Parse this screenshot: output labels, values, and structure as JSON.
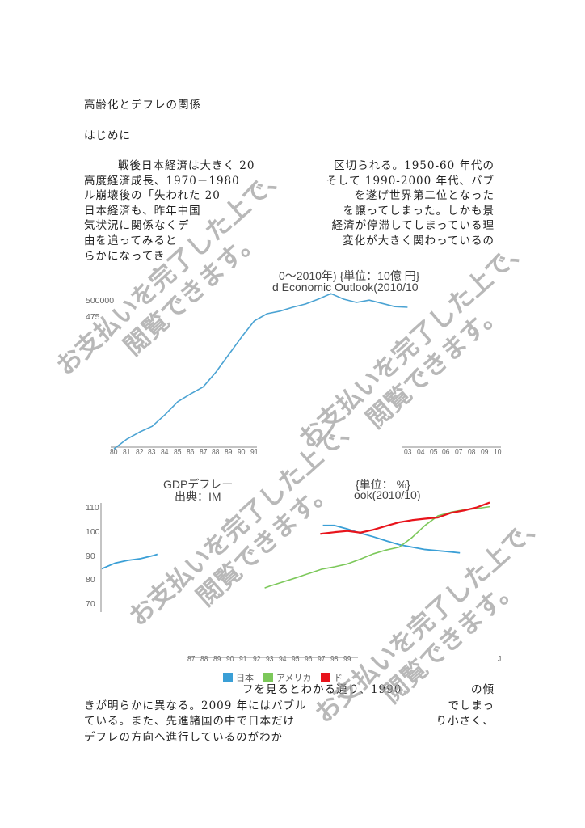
{
  "title": "高齢化とデフレの関係",
  "section": "はじめに",
  "intro_lines": [
    {
      "left": "戦後日本経済は大きく 20",
      "right": "区切られる。1950-60 年代の"
    },
    {
      "left": "高度経済成長、1970－1980 ",
      "right": "そして 1990-2000 年代、バブ"
    },
    {
      "left": "ル崩壊後の「失われた 20",
      "right": "を遂げ世界第二位となった"
    },
    {
      "left": "日本経済も、昨年中国",
      "right": "を譲ってしまった。しかも景"
    },
    {
      "left": "気状況に関係なくデ",
      "right": "経済が停滞してしまっている理"
    },
    {
      "left": "由を追ってみると",
      "right": "変化が大きく関わっているの"
    },
    {
      "left": "らかになってき",
      "right": ""
    }
  ],
  "outro_lines": [
    {
      "left": "フを見るとわかる通り、1990 ",
      "right": "の傾"
    },
    {
      "left": "きが明らかに異なる。2009 年にはバブル",
      "right": "でしまっ"
    },
    {
      "left": "ている。また、先進諸国の中で日本だけ",
      "right": "り小さく、"
    },
    {
      "left": "デフレの方向へ進行しているのがわか",
      "right": ""
    }
  ],
  "watermark": {
    "line1": "お支払いを完了した上で、",
    "line2": "閲覧できます。"
  },
  "chart_data": [
    {
      "type": "line",
      "title_line1": "0～2010年) {単位：10億 円}",
      "title_line2": "d Economic Outlook(2010/10",
      "ytick_labels": [
        "500000",
        "475"
      ],
      "xtick_labels_left": [
        "80",
        "81",
        "82",
        "83",
        "84",
        "85",
        "86",
        "87",
        "88",
        "89",
        "90",
        "91"
      ],
      "xtick_labels_right": [
        "03",
        "04",
        "05",
        "06",
        "07",
        "08",
        "09",
        "10"
      ],
      "color": "#4ba3d3",
      "x": [
        1980,
        1981,
        1982,
        1983,
        1984,
        1985,
        1986,
        1987,
        1988,
        1989,
        1990,
        1991,
        1992,
        1993,
        1994,
        1995,
        1996,
        1997,
        1998,
        1999,
        2000,
        2001,
        2002,
        2003
      ],
      "values": [
        271000,
        286000,
        297000,
        306000,
        324000,
        344000,
        356000,
        367000,
        390000,
        417000,
        444000,
        469000,
        480000,
        484000,
        490000,
        495000,
        502500,
        511000,
        502500,
        497500,
        501000,
        496000,
        491000,
        490000
      ]
    },
    {
      "type": "line",
      "title_line1_left": "GDPデフレー",
      "title_line2_left": "出典：IM",
      "title_line1_right": "{単位： %}",
      "title_line2_right": "ook(2010/10)",
      "yticks": [
        "110",
        "100",
        "90",
        "80",
        "70"
      ],
      "xtick_labels": [
        "87",
        "88",
        "89",
        "90",
        "91",
        "92",
        "93",
        "94",
        "95",
        "96",
        "97",
        "98",
        "99"
      ],
      "xtick_stray": "J",
      "legend": [
        {
          "name": "日本",
          "color": "#3a9fd6"
        },
        {
          "name": "アメリカ",
          "color": "#7cc85a"
        },
        {
          "name": "ド",
          "color": "#e8141c"
        }
      ],
      "series": [
        {
          "name": "日本",
          "segments": [
            {
              "x": [
                1980,
                1981,
                1982,
                1983,
                1984,
                1984.3
              ],
              "values": [
                85,
                87.3,
                88.5,
                89.2,
                90.5,
                91
              ]
            },
            {
              "x": [
                1997.1,
                1998,
                1999,
                2000,
                2001,
                2002,
                2003,
                2004,
                2005,
                2006,
                2007,
                2007.7
              ],
              "values": [
                103,
                103,
                101.5,
                99.8,
                98.3,
                96.6,
                95,
                94,
                93,
                92.5,
                92,
                91.6
              ]
            }
          ]
        },
        {
          "name": "アメリカ",
          "segments": [
            {
              "x": [
                1992.6,
                1993,
                1994,
                1995,
                1996,
                1997,
                1998,
                1999,
                2000,
                2001,
                2002,
                2003,
                2004,
                2005,
                2006,
                2007,
                2008,
                2009,
                2010
              ],
              "values": [
                77,
                77.8,
                79.5,
                81.2,
                83,
                84.8,
                85.8,
                87,
                89,
                91.2,
                92.8,
                94,
                98,
                103,
                107,
                108.5,
                109.5,
                110,
                110.8
              ]
            }
          ]
        },
        {
          "name": "ド",
          "segments": [
            {
              "x": [
                1996.9,
                1998,
                1999,
                2000,
                2001,
                2002,
                2003,
                2004,
                2005,
                2006,
                2007,
                2008,
                2009,
                2010
              ],
              "values": [
                99.5,
                100.2,
                100.7,
                100,
                101.2,
                102.8,
                104.3,
                105.2,
                105.8,
                106.3,
                108.2,
                109.2,
                110.5,
                112.5
              ]
            }
          ]
        }
      ]
    }
  ]
}
